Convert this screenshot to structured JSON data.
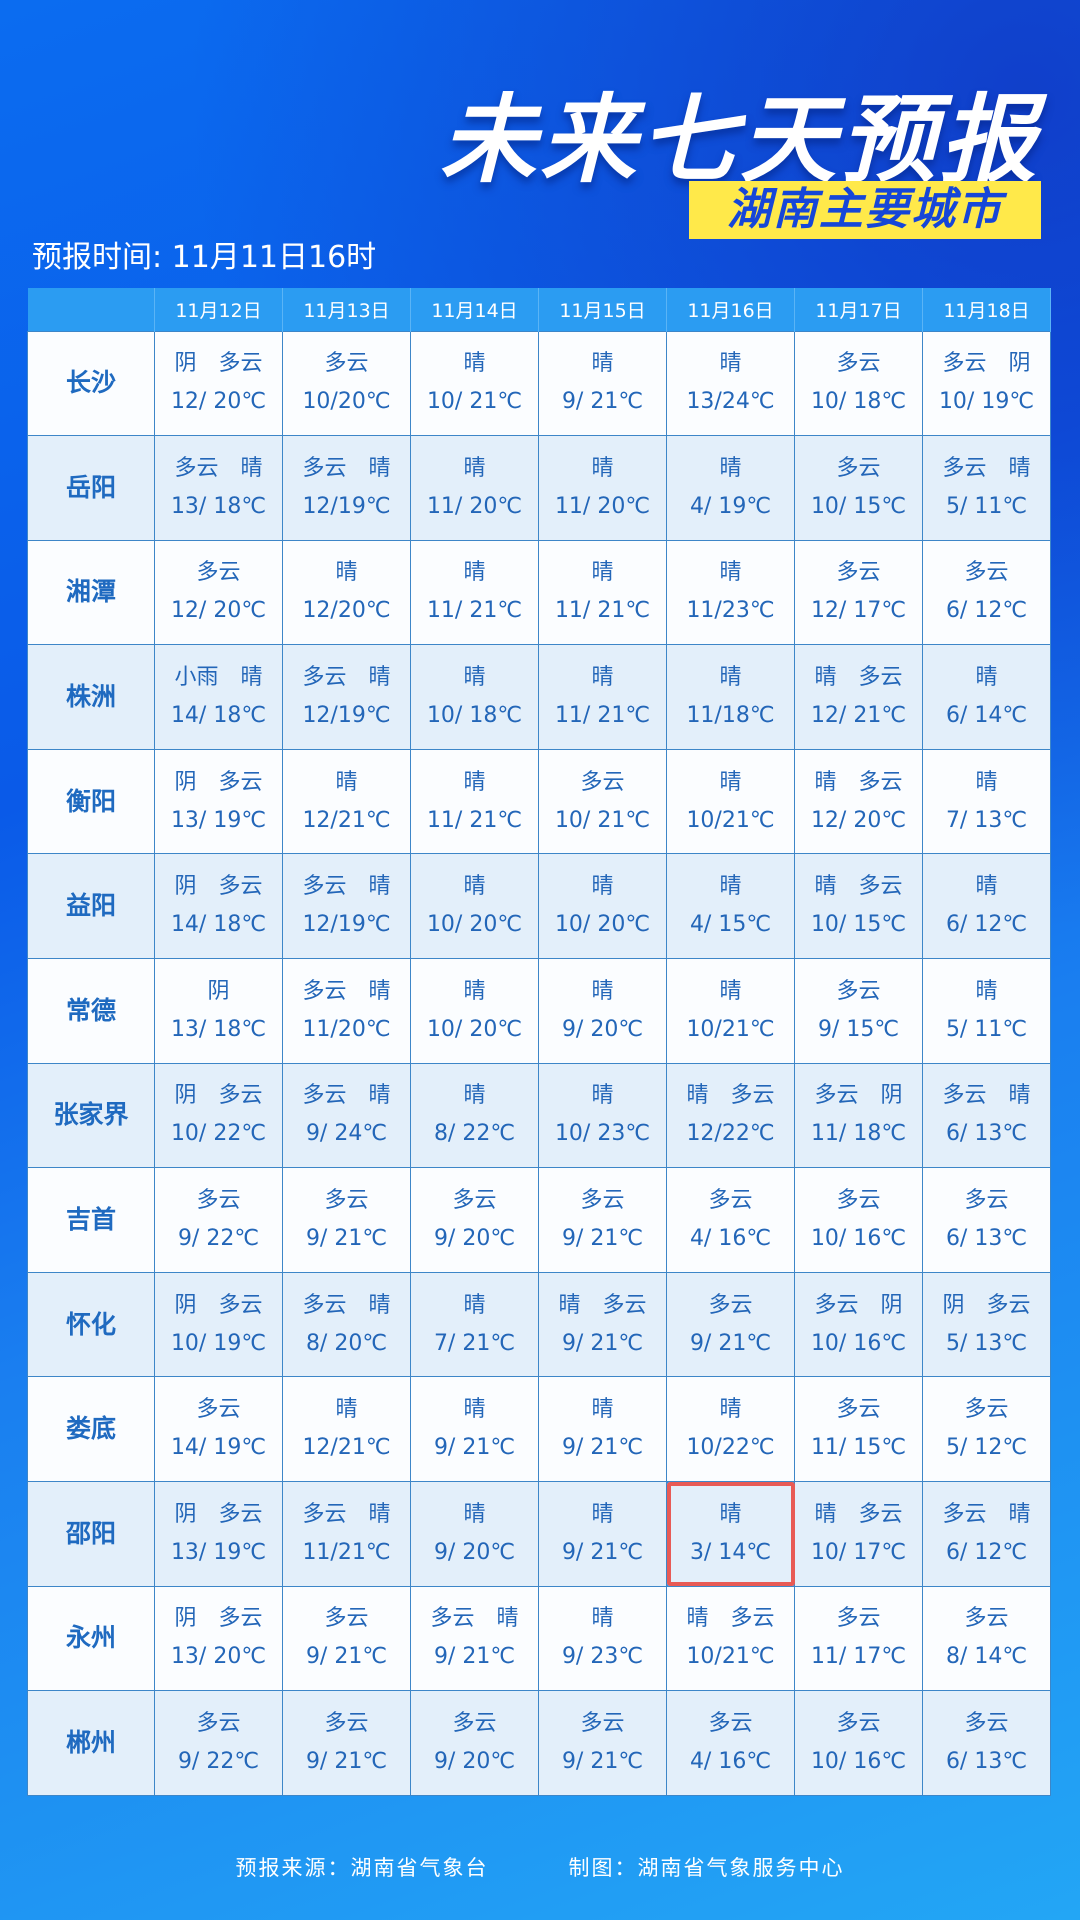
{
  "title": "未来七天预报",
  "subtitle": "湖南主要城市",
  "issue_time": "预报时间: 11月11日16时",
  "dates": [
    "11月12日",
    "11月13日",
    "11月14日",
    "11月15日",
    "11月16日",
    "11月17日",
    "11月18日"
  ],
  "rows": [
    {
      "city": "长沙",
      "cells": [
        [
          "阴　多云",
          "12/ 20℃"
        ],
        [
          "多云",
          "10/20℃"
        ],
        [
          "晴",
          "10/ 21℃"
        ],
        [
          "晴",
          "9/ 21℃"
        ],
        [
          "晴",
          "13/24℃"
        ],
        [
          "多云",
          "10/ 18℃"
        ],
        [
          "多云　阴",
          "10/ 19℃"
        ]
      ]
    },
    {
      "city": "岳阳",
      "cells": [
        [
          "多云　晴",
          "13/ 18℃"
        ],
        [
          "多云　晴",
          "12/19℃"
        ],
        [
          "晴",
          "11/ 20℃"
        ],
        [
          "晴",
          "11/ 20℃"
        ],
        [
          "晴",
          "4/ 19℃"
        ],
        [
          "多云",
          "10/ 15℃"
        ],
        [
          "多云　晴",
          "5/ 11℃"
        ]
      ]
    },
    {
      "city": "湘潭",
      "cells": [
        [
          "多云",
          "12/ 20℃"
        ],
        [
          "晴",
          "12/20℃"
        ],
        [
          "晴",
          "11/ 21℃"
        ],
        [
          "晴",
          "11/ 21℃"
        ],
        [
          "晴",
          "11/23℃"
        ],
        [
          "多云",
          "12/ 17℃"
        ],
        [
          "多云",
          "6/ 12℃"
        ]
      ]
    },
    {
      "city": "株洲",
      "cells": [
        [
          "小雨　晴",
          "14/ 18℃"
        ],
        [
          "多云　晴",
          "12/19℃"
        ],
        [
          "晴",
          "10/ 18℃"
        ],
        [
          "晴",
          "11/ 21℃"
        ],
        [
          "晴",
          "11/18℃"
        ],
        [
          "晴　多云",
          "12/ 21℃"
        ],
        [
          "晴",
          "6/ 14℃"
        ]
      ]
    },
    {
      "city": "衡阳",
      "cells": [
        [
          "阴　多云",
          "13/ 19℃"
        ],
        [
          "晴",
          "12/21℃"
        ],
        [
          "晴",
          "11/ 21℃"
        ],
        [
          "多云",
          "10/ 21℃"
        ],
        [
          "晴",
          "10/21℃"
        ],
        [
          "晴　多云",
          "12/ 20℃"
        ],
        [
          "晴",
          "7/ 13℃"
        ]
      ]
    },
    {
      "city": "益阳",
      "cells": [
        [
          "阴　多云",
          "14/ 18℃"
        ],
        [
          "多云　晴",
          "12/19℃"
        ],
        [
          "晴",
          "10/ 20℃"
        ],
        [
          "晴",
          "10/ 20℃"
        ],
        [
          "晴",
          "4/ 15℃"
        ],
        [
          "晴　多云",
          "10/ 15℃"
        ],
        [
          "晴",
          "6/ 12℃"
        ]
      ]
    },
    {
      "city": "常德",
      "cells": [
        [
          "阴",
          "13/ 18℃"
        ],
        [
          "多云　晴",
          "11/20℃"
        ],
        [
          "晴",
          "10/ 20℃"
        ],
        [
          "晴",
          "9/ 20℃"
        ],
        [
          "晴",
          "10/21℃"
        ],
        [
          "多云",
          "9/ 15℃"
        ],
        [
          "晴",
          "5/ 11℃"
        ]
      ]
    },
    {
      "city": "张家界",
      "cells": [
        [
          "阴　多云",
          "10/ 22℃"
        ],
        [
          "多云　晴",
          "9/ 24℃"
        ],
        [
          "晴",
          "8/ 22℃"
        ],
        [
          "晴",
          "10/ 23℃"
        ],
        [
          "晴　多云",
          "12/22℃"
        ],
        [
          "多云　阴",
          "11/ 18℃"
        ],
        [
          "多云　晴",
          "6/ 13℃"
        ]
      ]
    },
    {
      "city": "吉首",
      "cells": [
        [
          "多云",
          "9/ 22℃"
        ],
        [
          "多云",
          "9/ 21℃"
        ],
        [
          "多云",
          "9/ 20℃"
        ],
        [
          "多云",
          "9/ 21℃"
        ],
        [
          "多云",
          "4/ 16℃"
        ],
        [
          "多云",
          "10/ 16℃"
        ],
        [
          "多云",
          "6/ 13℃"
        ]
      ]
    },
    {
      "city": "怀化",
      "cells": [
        [
          "阴　多云",
          "10/ 19℃"
        ],
        [
          "多云　晴",
          "8/ 20℃"
        ],
        [
          "晴",
          "7/ 21℃"
        ],
        [
          "晴　多云",
          "9/ 21℃"
        ],
        [
          "多云",
          "9/ 21℃"
        ],
        [
          "多云　阴",
          "10/ 16℃"
        ],
        [
          "阴　多云",
          "5/ 13℃"
        ]
      ]
    },
    {
      "city": "娄底",
      "cells": [
        [
          "多云",
          "14/ 19℃"
        ],
        [
          "晴",
          "12/21℃"
        ],
        [
          "晴",
          "9/ 21℃"
        ],
        [
          "晴",
          "9/ 21℃"
        ],
        [
          "晴",
          "10/22℃"
        ],
        [
          "多云",
          "11/ 15℃"
        ],
        [
          "多云",
          "5/ 12℃"
        ]
      ]
    },
    {
      "city": "邵阳",
      "cells": [
        [
          "阴　多云",
          "13/ 19℃"
        ],
        [
          "多云　晴",
          "11/21℃"
        ],
        [
          "晴",
          "9/ 20℃"
        ],
        [
          "晴",
          "9/ 21℃"
        ],
        [
          "晴",
          "3/ 14℃"
        ],
        [
          "晴　多云",
          "10/ 17℃"
        ],
        [
          "多云　晴",
          "6/ 12℃"
        ]
      ]
    },
    {
      "city": "永州",
      "cells": [
        [
          "阴　多云",
          "13/ 20℃"
        ],
        [
          "多云",
          "9/ 21℃"
        ],
        [
          "多云　晴",
          "9/ 21℃"
        ],
        [
          "晴",
          "9/ 23℃"
        ],
        [
          "晴　多云",
          "10/21℃"
        ],
        [
          "多云",
          "11/ 17℃"
        ],
        [
          "多云",
          "8/ 14℃"
        ]
      ]
    },
    {
      "city": "郴州",
      "cells": [
        [
          "多云",
          "9/ 22℃"
        ],
        [
          "多云",
          "9/ 21℃"
        ],
        [
          "多云",
          "9/ 20℃"
        ],
        [
          "多云",
          "9/ 21℃"
        ],
        [
          "多云",
          "4/ 16℃"
        ],
        [
          "多云",
          "10/ 16℃"
        ],
        [
          "多云",
          "6/ 13℃"
        ]
      ]
    }
  ],
  "highlight": {
    "city": "邵阳",
    "date": "11月16日",
    "color": "#e85a55"
  },
  "footer": {
    "source": "预报来源：湖南省气象台",
    "maker": "制图：湖南省气象服务中心"
  }
}
